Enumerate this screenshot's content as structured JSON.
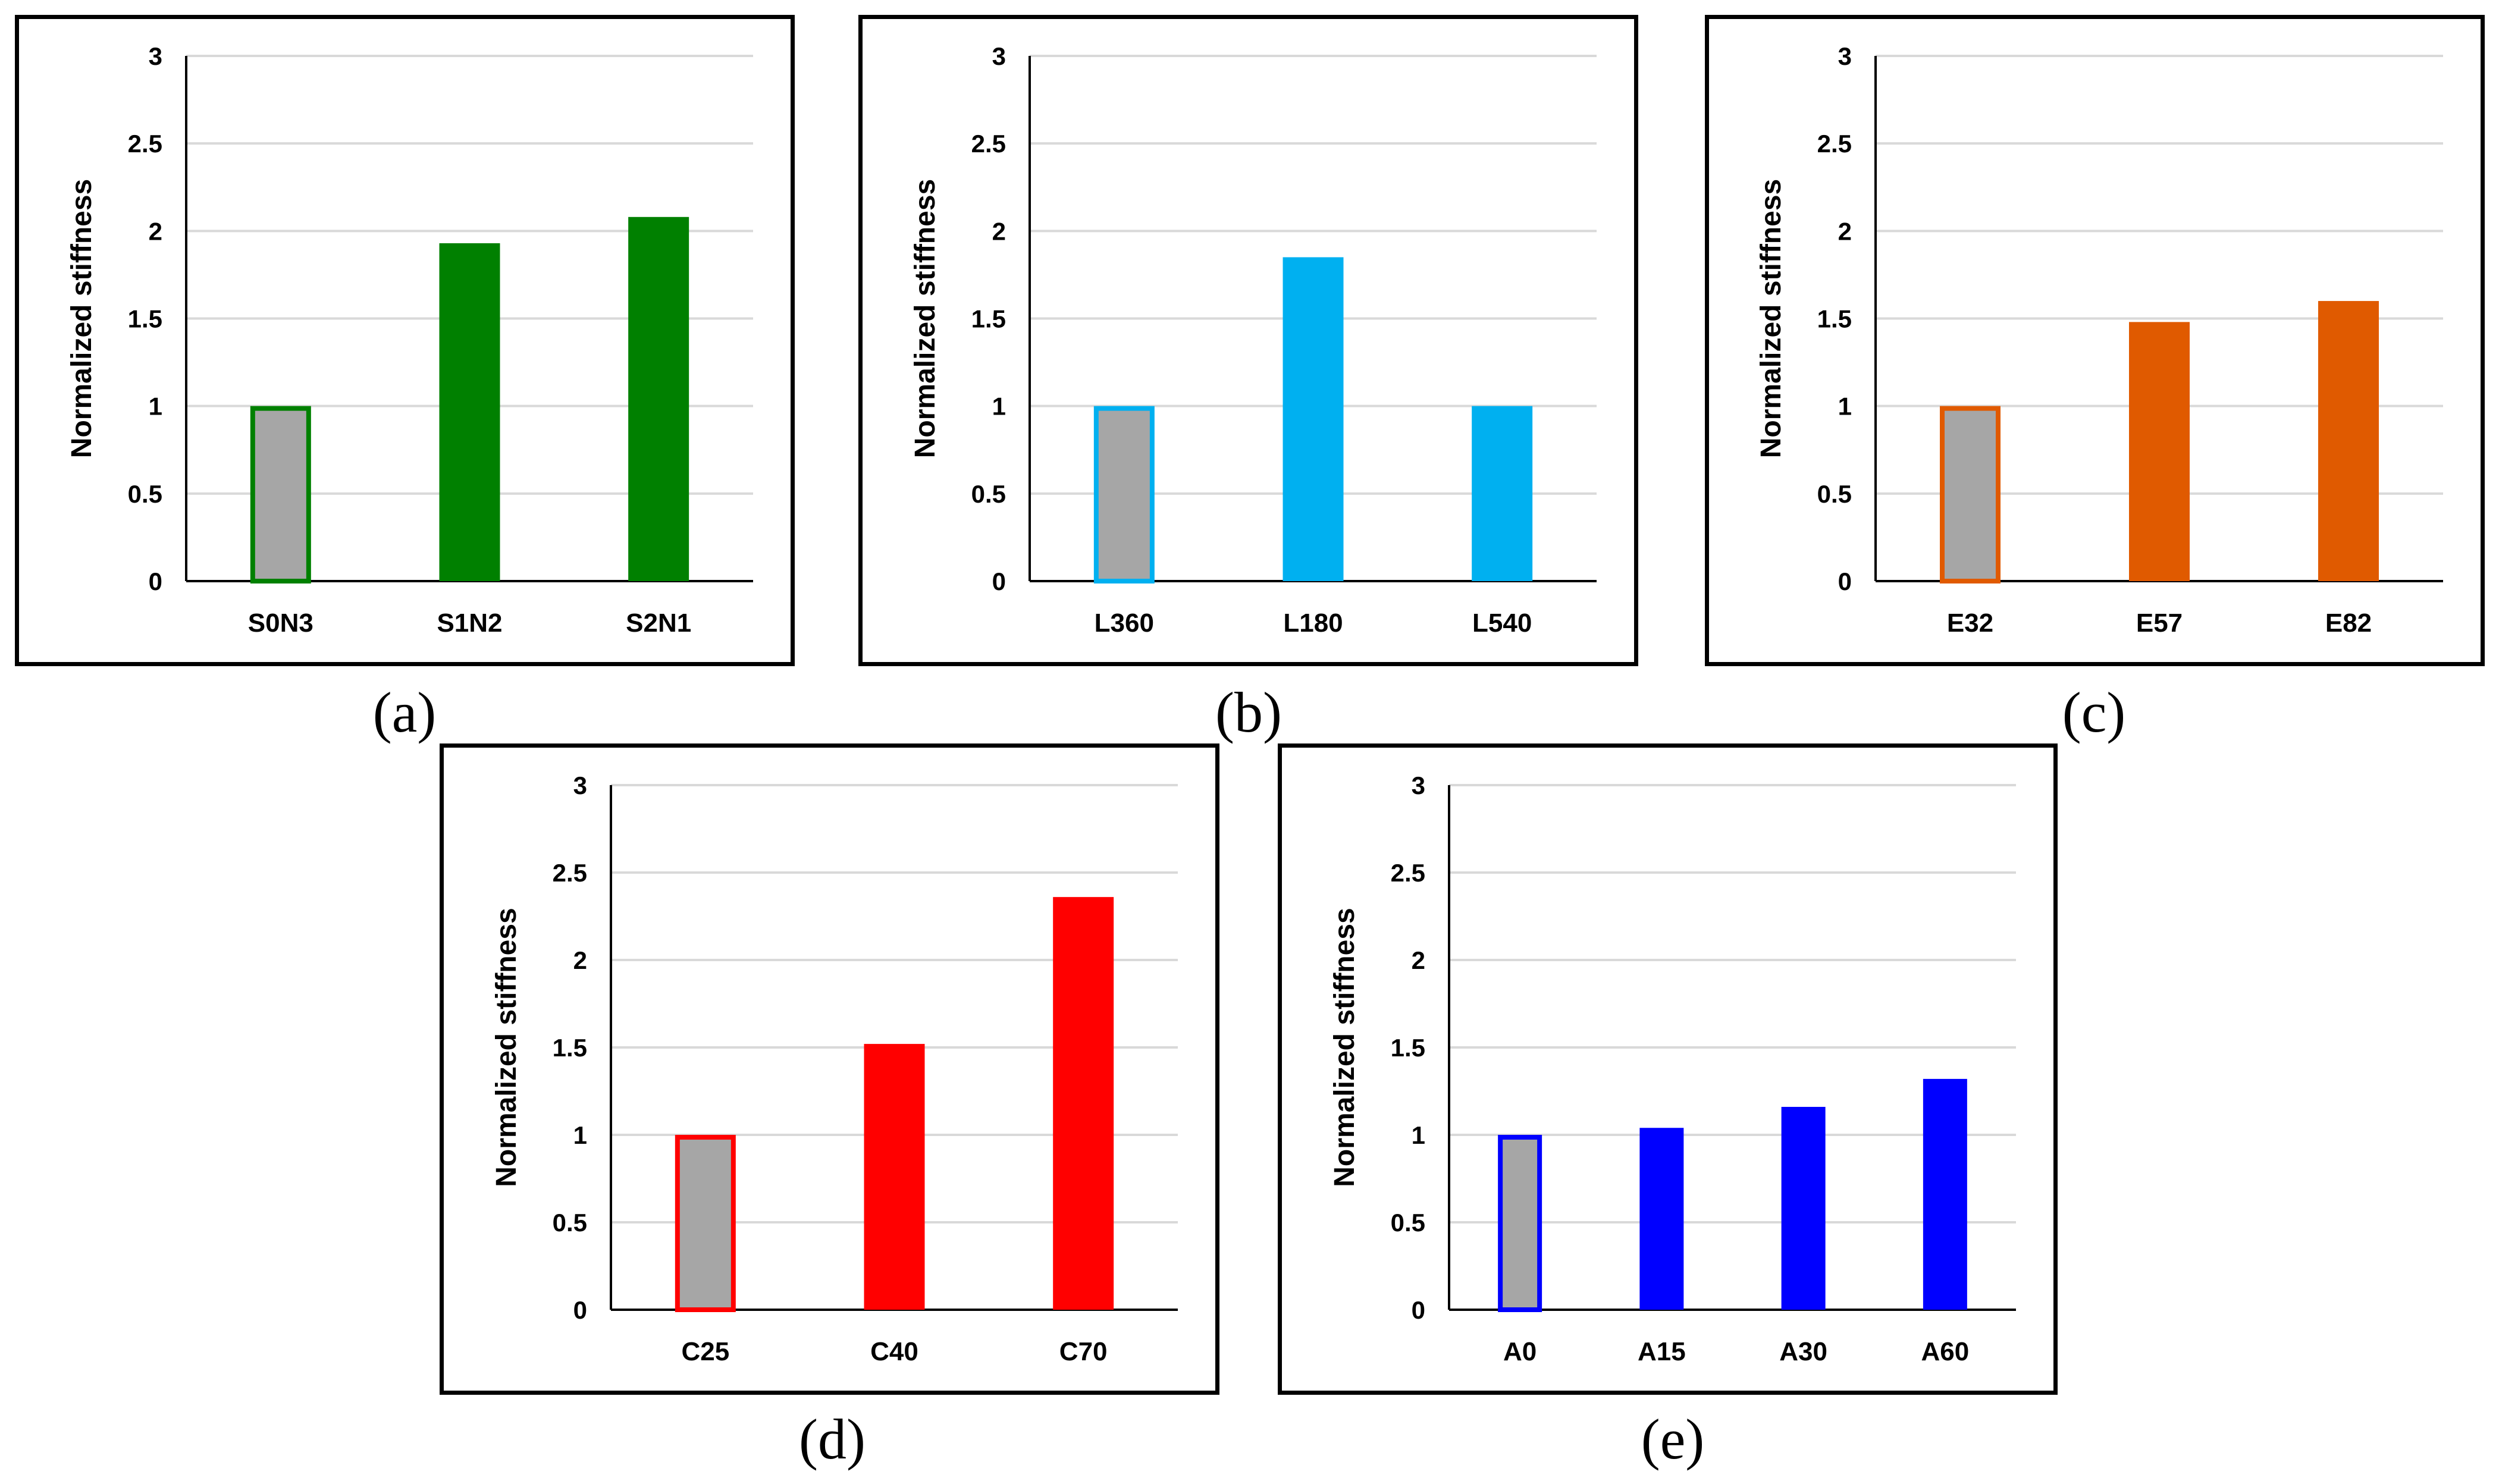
{
  "chart_data": [
    {
      "type": "bar",
      "panel_label": "(a)",
      "ylabel": "Normalized stiffness",
      "xlabel": "",
      "ylim": [
        0,
        3
      ],
      "yticks": [
        "0",
        "0.5",
        "1",
        "1.5",
        "2",
        "2.5",
        "3"
      ],
      "grid": true,
      "categories": [
        "S0N3",
        "S1N2",
        "S2N1"
      ],
      "values": [
        1.0,
        1.93,
        2.08
      ],
      "color": "#008000",
      "baseline_fill": "#a6a6a6"
    },
    {
      "type": "bar",
      "panel_label": "(b)",
      "ylabel": "Normalized stiffness",
      "xlabel": "",
      "ylim": [
        0,
        3
      ],
      "yticks": [
        "0",
        "0.5",
        "1",
        "1.5",
        "2",
        "2.5",
        "3"
      ],
      "grid": true,
      "categories": [
        "L360",
        "L180",
        "L540"
      ],
      "values": [
        1.0,
        1.85,
        1.0
      ],
      "color": "#00b0f0",
      "baseline_fill": "#a6a6a6"
    },
    {
      "type": "bar",
      "panel_label": "(c)",
      "ylabel": "Normalized stiffness",
      "xlabel": "",
      "ylim": [
        0,
        3
      ],
      "yticks": [
        "0",
        "0.5",
        "1",
        "1.5",
        "2",
        "2.5",
        "3"
      ],
      "grid": true,
      "categories": [
        "E32",
        "E57",
        "E82"
      ],
      "values": [
        1.0,
        1.48,
        1.6
      ],
      "color": "#e05a00",
      "baseline_fill": "#a6a6a6"
    },
    {
      "type": "bar",
      "panel_label": "(d)",
      "ylabel": "Normalized stiffness",
      "xlabel": "",
      "ylim": [
        0,
        3
      ],
      "yticks": [
        "0",
        "0.5",
        "1",
        "1.5",
        "2",
        "2.5",
        "3"
      ],
      "grid": true,
      "categories": [
        "C25",
        "C40",
        "C70"
      ],
      "values": [
        1.0,
        1.52,
        2.36
      ],
      "color": "#ff0000",
      "baseline_fill": "#a6a6a6"
    },
    {
      "type": "bar",
      "panel_label": "(e)",
      "ylabel": "Normalized stiffness",
      "xlabel": "",
      "ylim": [
        0,
        3
      ],
      "yticks": [
        "0",
        "0.5",
        "1",
        "1.5",
        "2",
        "2.5",
        "3"
      ],
      "grid": true,
      "categories": [
        "A0",
        "A15",
        "A30",
        "A60"
      ],
      "values": [
        1.0,
        1.04,
        1.16,
        1.32
      ],
      "color": "#0000ff",
      "baseline_fill": "#a6a6a6"
    }
  ]
}
